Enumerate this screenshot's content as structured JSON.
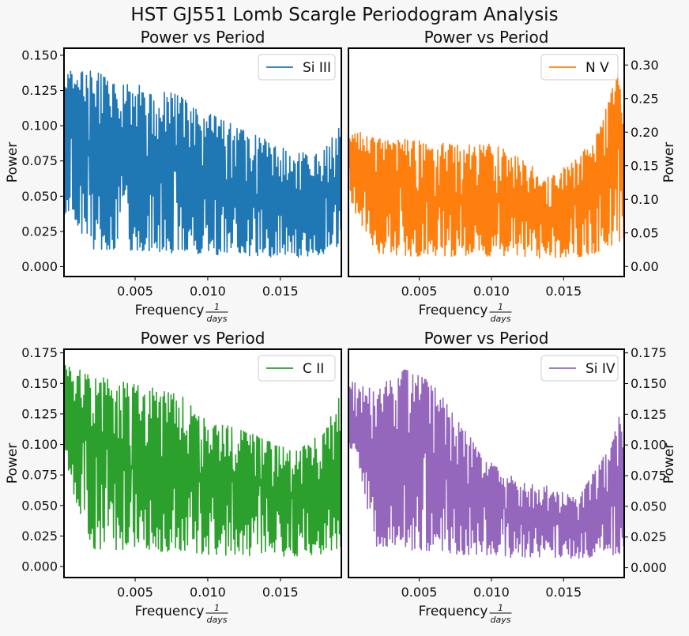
{
  "figure": {
    "title": "HST GJ551 Lomb Scargle Periodogram Analysis",
    "background": "#f7f7f7"
  },
  "chart_data": [
    {
      "type": "line",
      "title": "Power vs Period",
      "xlabel": "Frequency",
      "xlabel_unit": {
        "numerator": "1",
        "denominator": "days"
      },
      "ylabel": "Power",
      "ylabel_side": "left",
      "xlim": [
        0.0001,
        0.0192
      ],
      "ylim": [
        -0.007,
        0.155
      ],
      "xticks": [
        0.005,
        0.01,
        0.015
      ],
      "xtick_labels": [
        "0.005",
        "0.010",
        "0.015"
      ],
      "yticks": [
        0.0,
        0.025,
        0.05,
        0.075,
        0.1,
        0.125,
        0.15
      ],
      "ytick_labels": [
        "0.000",
        "0.025",
        "0.050",
        "0.075",
        "0.100",
        "0.125",
        "0.150"
      ],
      "legend": "top-right",
      "series": [
        {
          "name": "Si III",
          "color": "#1f77b4",
          "x": [
            0.0001,
            0.002,
            0.004,
            0.006,
            0.008,
            0.01,
            0.012,
            0.014,
            0.016,
            0.018,
            0.0192
          ],
          "peak_envelope": [
            0.145,
            0.147,
            0.138,
            0.135,
            0.128,
            0.115,
            0.105,
            0.095,
            0.085,
            0.088,
            0.106
          ],
          "trough_envelope": [
            0.03,
            0.005,
            0.005,
            0.003,
            0.003,
            0.003,
            0.002,
            0.002,
            0.002,
            0.004,
            0.01
          ]
        }
      ]
    },
    {
      "type": "line",
      "title": "Power vs Period",
      "xlabel": "Frequency",
      "xlabel_unit": {
        "numerator": "1",
        "denominator": "days"
      },
      "ylabel": "Power",
      "ylabel_side": "right",
      "xlim": [
        0.0001,
        0.0192
      ],
      "ylim": [
        -0.015,
        0.325
      ],
      "xticks": [
        0.005,
        0.01,
        0.015
      ],
      "xtick_labels": [
        "0.005",
        "0.010",
        "0.015"
      ],
      "yticks": [
        0.0,
        0.05,
        0.1,
        0.15,
        0.2,
        0.25,
        0.3
      ],
      "ytick_labels": [
        "0.00",
        "0.05",
        "0.10",
        "0.15",
        "0.20",
        "0.25",
        "0.30"
      ],
      "legend": "top-right",
      "series": [
        {
          "name": "N V",
          "color": "#ff7f0e",
          "x": [
            0.0001,
            0.002,
            0.004,
            0.006,
            0.008,
            0.01,
            0.012,
            0.014,
            0.016,
            0.017,
            0.018,
            0.0188,
            0.0192
          ],
          "peak_envelope": [
            0.22,
            0.2,
            0.2,
            0.195,
            0.19,
            0.195,
            0.17,
            0.14,
            0.17,
            0.2,
            0.25,
            0.31,
            0.25
          ],
          "trough_envelope": [
            0.09,
            0.01,
            0.005,
            0.005,
            0.005,
            0.005,
            0.005,
            0.005,
            0.005,
            0.008,
            0.01,
            0.02,
            0.03
          ]
        }
      ]
    },
    {
      "type": "line",
      "title": "Power vs Period",
      "xlabel": "Frequency",
      "xlabel_unit": {
        "numerator": "1",
        "denominator": "days"
      },
      "ylabel": "Power",
      "ylabel_side": "left",
      "xlim": [
        0.0001,
        0.0192
      ],
      "ylim": [
        -0.009,
        0.178
      ],
      "xticks": [
        0.005,
        0.01,
        0.015
      ],
      "xtick_labels": [
        "0.005",
        "0.010",
        "0.015"
      ],
      "yticks": [
        0.0,
        0.025,
        0.05,
        0.075,
        0.1,
        0.125,
        0.15,
        0.175
      ],
      "ytick_labels": [
        "0.000",
        "0.025",
        "0.050",
        "0.075",
        "0.100",
        "0.125",
        "0.150",
        "0.175"
      ],
      "legend": "top-right",
      "series": [
        {
          "name": "C II",
          "color": "#2ca02c",
          "x": [
            0.0001,
            0.002,
            0.004,
            0.006,
            0.008,
            0.01,
            0.012,
            0.014,
            0.016,
            0.018,
            0.0192
          ],
          "peak_envelope": [
            0.172,
            0.165,
            0.16,
            0.155,
            0.15,
            0.125,
            0.12,
            0.11,
            0.1,
            0.12,
            0.155
          ],
          "trough_envelope": [
            0.08,
            0.005,
            0.004,
            0.004,
            0.004,
            0.003,
            0.003,
            0.003,
            0.003,
            0.004,
            0.005
          ]
        }
      ]
    },
    {
      "type": "line",
      "title": "Power vs Period",
      "xlabel": "Frequency",
      "xlabel_unit": {
        "numerator": "1",
        "denominator": "days"
      },
      "ylabel": "Power",
      "ylabel_side": "right",
      "xlim": [
        0.0001,
        0.0192
      ],
      "ylim": [
        -0.008,
        0.178
      ],
      "xticks": [
        0.005,
        0.01,
        0.015
      ],
      "xtick_labels": [
        "0.005",
        "0.010",
        "0.015"
      ],
      "yticks": [
        0.0,
        0.025,
        0.05,
        0.075,
        0.1,
        0.125,
        0.15,
        0.175
      ],
      "ytick_labels": [
        "0.000",
        "0.025",
        "0.050",
        "0.075",
        "0.100",
        "0.125",
        "0.150",
        "0.175"
      ],
      "legend": "top-right",
      "series": [
        {
          "name": "Si IV",
          "color": "#9467bd",
          "x": [
            0.0001,
            0.002,
            0.004,
            0.006,
            0.008,
            0.01,
            0.012,
            0.014,
            0.016,
            0.018,
            0.0192
          ],
          "peak_envelope": [
            0.155,
            0.155,
            0.17,
            0.16,
            0.12,
            0.09,
            0.075,
            0.07,
            0.06,
            0.1,
            0.145
          ],
          "trough_envelope": [
            0.1,
            0.01,
            0.005,
            0.004,
            0.004,
            0.004,
            0.004,
            0.004,
            0.004,
            0.004,
            0.005
          ]
        }
      ]
    }
  ]
}
